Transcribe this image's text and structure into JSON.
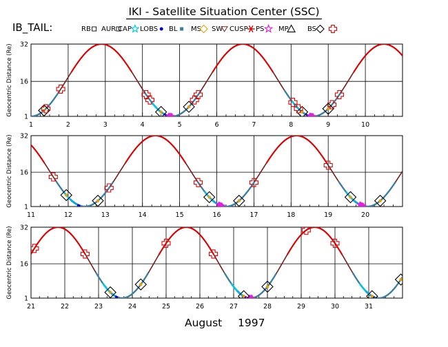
{
  "title": "IKI - Satellite Situation Center (SSC)",
  "satellite_label": "IB_TAIL:",
  "xlabel_month": "August",
  "xlabel_year": "1997",
  "legend": [
    {
      "label": "RB",
      "marker": "square-small",
      "color": "#000000"
    },
    {
      "label": "AUR",
      "marker": "square-small",
      "color": "#000000"
    },
    {
      "label": "CAP",
      "marker": "star",
      "color": "#00c8e6"
    },
    {
      "label": "LOBS",
      "marker": "dot",
      "color": "#0000cc"
    },
    {
      "label": "BL",
      "marker": "square-fill",
      "color": "#3a7fa0"
    },
    {
      "label": "MS",
      "marker": "diamond",
      "color": "#e6a000"
    },
    {
      "label": "SW",
      "marker": "triangle-down",
      "color": "#7a1e1e"
    },
    {
      "label": "CUSP",
      "marker": "asterisk",
      "color": "#e00000"
    },
    {
      "label": "PS",
      "marker": "star",
      "color": "#e020e0"
    },
    {
      "label": "MP",
      "marker": "triangle",
      "color": "#000000"
    },
    {
      "label": "BS",
      "marker": "diamond",
      "color": "#000000"
    },
    {
      "label": "",
      "marker": "cross",
      "color": "#e00000"
    }
  ],
  "colors": {
    "sw": "#e00000",
    "ms": "#7a1e1e",
    "bl": "#3a7fa0",
    "lobs": "#0000cc",
    "cap": "#00c8e6",
    "ps": "#e020e0",
    "mp_marker": "#e6a000",
    "bs_cross": "#e00000"
  },
  "chart_data": [
    {
      "type": "line",
      "ylabel": "Geocentric Distance (Re)",
      "ylim": [
        1,
        32
      ],
      "yticks": [
        1,
        16,
        32
      ],
      "xlim": [
        1,
        11
      ],
      "xticks": [
        1,
        2,
        3,
        4,
        5,
        6,
        7,
        8,
        9,
        10
      ],
      "grid": true,
      "perigees": [
        1.0,
        4.85,
        8.65
      ],
      "apogees": [
        2.9,
        6.7,
        10.55
      ],
      "bow_shock_crossings": [
        1.4,
        1.8,
        4.1,
        4.2,
        5.4,
        5.5,
        8.05,
        8.2,
        9.1,
        9.3
      ],
      "magnetopause_crossings": [
        1.35,
        4.5,
        5.25,
        8.3,
        9.0
      ],
      "ps_intervals": [
        [
          4.7,
          4.8
        ],
        [
          8.5,
          8.6
        ]
      ]
    },
    {
      "type": "line",
      "ylabel": "Geocentric Distance (Re)",
      "ylim": [
        1,
        32
      ],
      "yticks": [
        1,
        16,
        32
      ],
      "xlim": [
        11,
        21
      ],
      "xticks": [
        11,
        12,
        13,
        14,
        15,
        16,
        17,
        18,
        19,
        20
      ],
      "grid": true,
      "perigees": [
        12.45,
        16.25,
        20.1
      ],
      "apogees": [
        14.35,
        18.2
      ],
      "bow_shock_crossings": [
        11.6,
        13.1,
        15.5,
        17.0,
        19.0
      ],
      "magnetopause_crossings": [
        11.95,
        12.8,
        15.8,
        16.6,
        19.6,
        20.4
      ],
      "ps_intervals": [
        [
          16.05,
          16.15
        ],
        [
          19.85,
          19.95
        ]
      ]
    },
    {
      "type": "line",
      "ylabel": "Geocentric Distance (Re)",
      "ylim": [
        1,
        32
      ],
      "yticks": [
        1,
        16,
        32
      ],
      "xlim": [
        21,
        32
      ],
      "xticks": [
        21,
        22,
        23,
        24,
        25,
        26,
        27,
        28,
        29,
        30,
        31
      ],
      "grid": true,
      "perigees": [
        23.7,
        27.55,
        31.35
      ],
      "apogees": [
        21.95,
        25.6,
        29.45
      ],
      "bow_shock_crossings": [
        21.1,
        22.6,
        25.0,
        26.4,
        29.15,
        30.0
      ],
      "magnetopause_crossings": [
        23.35,
        24.25,
        27.3,
        28.0,
        31.1,
        31.95
      ],
      "ps_intervals": [
        [
          27.45,
          27.55
        ]
      ]
    }
  ]
}
